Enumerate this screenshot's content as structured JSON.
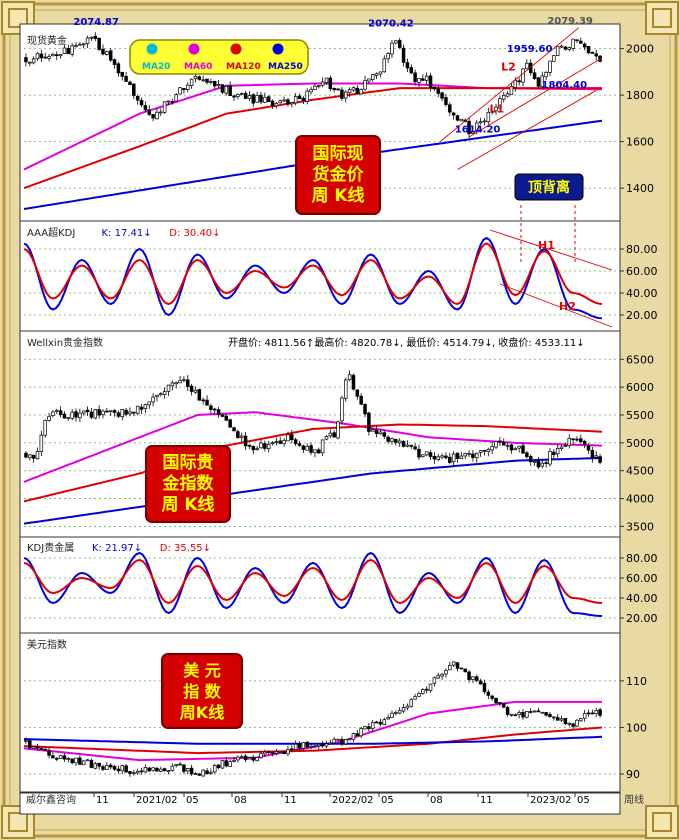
{
  "colors": {
    "ma20": "#00b8d8",
    "ma60": "#e000e0",
    "ma120": "#e00000",
    "ma250": "#0000d8",
    "k_line": "#0000e0",
    "d_line": "#e00000",
    "annot": "#e00000",
    "candle": "#000000",
    "box_bg": "#d40000",
    "box_text": "#ffff00",
    "navy_box": "#0b1a8c"
  },
  "x_axis": {
    "labels": [
      "11",
      "2021/02",
      "05",
      "08",
      "11",
      "2022/02",
      "05",
      "08",
      "11",
      "2023/02",
      "05"
    ],
    "corner_left": "威尔鑫咨询",
    "corner_right": "周线"
  },
  "chart_data": [
    {
      "id": "spot_gold",
      "type": "candlestick",
      "title": "现货黄金",
      "frequency": "weekly",
      "ylim": [
        1280,
        2080
      ],
      "yticks": [
        1400,
        1600,
        1800,
        2000
      ],
      "grid": true,
      "legend": {
        "placement": "top-left",
        "entries": [
          "MA20",
          "MA60",
          "MA120",
          "MA250"
        ]
      },
      "key_points": [
        {
          "t": 0.05,
          "y": 1960
        },
        {
          "t": 0.12,
          "y": 2050
        },
        {
          "t": 0.22,
          "y": 1700
        },
        {
          "t": 0.3,
          "y": 1880
        },
        {
          "t": 0.38,
          "y": 1790
        },
        {
          "t": 0.45,
          "y": 1760
        },
        {
          "t": 0.5,
          "y": 1810
        },
        {
          "t": 0.52,
          "y": 1870
        },
        {
          "t": 0.55,
          "y": 1790
        },
        {
          "t": 0.6,
          "y": 1860
        },
        {
          "t": 0.63,
          "y": 1960
        },
        {
          "t": 0.64,
          "y": 2060
        },
        {
          "t": 0.67,
          "y": 1880
        },
        {
          "t": 0.7,
          "y": 1860
        },
        {
          "t": 0.73,
          "y": 1760
        },
        {
          "t": 0.77,
          "y": 1650
        },
        {
          "t": 0.79,
          "y": 1680
        },
        {
          "t": 0.81,
          "y": 1750
        },
        {
          "t": 0.84,
          "y": 1810
        },
        {
          "t": 0.87,
          "y": 1930
        },
        {
          "t": 0.89,
          "y": 1830
        },
        {
          "t": 0.92,
          "y": 1990
        },
        {
          "t": 0.95,
          "y": 2030
        },
        {
          "t": 0.98,
          "y": 1990
        },
        {
          "t": 1.0,
          "y": 1945
        }
      ],
      "ma_series": [
        {
          "name": "MA60",
          "color": "#e000e0",
          "x": [
            0.0,
            0.2,
            0.35,
            0.5,
            0.65,
            0.8,
            1.0
          ],
          "y": [
            1480,
            1720,
            1840,
            1850,
            1850,
            1830,
            1825
          ]
        },
        {
          "name": "MA120",
          "color": "#e00000",
          "x": [
            0.0,
            0.2,
            0.35,
            0.5,
            0.65,
            0.8,
            1.0
          ],
          "y": [
            1400,
            1580,
            1720,
            1780,
            1830,
            1830,
            1830
          ]
        },
        {
          "name": "MA250",
          "color": "#0000d8",
          "x": [
            0.0,
            0.3,
            0.6,
            0.8,
            1.0
          ],
          "y": [
            1310,
            1430,
            1550,
            1620,
            1690
          ]
        }
      ],
      "annotations": [
        {
          "text": "2074.87",
          "x": 0.12,
          "y": 2075,
          "color": "#0000d8"
        },
        {
          "text": "2070.42",
          "x": 0.63,
          "y": 2070,
          "color": "#0000d8"
        },
        {
          "text": "2079.39",
          "x": 0.94,
          "y": 2079,
          "color": "#555555"
        },
        {
          "text": "1959.60",
          "x": 0.87,
          "y": 1960,
          "color": "#0000d8"
        },
        {
          "text": "1804.40",
          "x": 0.93,
          "y": 1804,
          "color": "#0000d8"
        },
        {
          "text": "1614.20",
          "x": 0.78,
          "y": 1614,
          "color": "#0000d8"
        },
        {
          "text": "L2",
          "x": 0.86,
          "y": 1880,
          "color": "#e00000"
        },
        {
          "text": "L1",
          "x": 0.84,
          "y": 1700,
          "color": "#e00000"
        }
      ],
      "label_box": "国际现\n货金价\n周 K线",
      "divergence_label": "顶背离"
    },
    {
      "id": "aaa_kdj",
      "type": "line",
      "title": "AAA超KDJ",
      "series": [
        {
          "name": "K: 17.41↓",
          "color": "#0000e0",
          "x": [
            0.0,
            0.05,
            0.1,
            0.15,
            0.2,
            0.25,
            0.3,
            0.35,
            0.4,
            0.45,
            0.5,
            0.55,
            0.6,
            0.65,
            0.7,
            0.75,
            0.8,
            0.85,
            0.9,
            0.95,
            1.0
          ],
          "y": [
            85,
            25,
            70,
            30,
            80,
            20,
            75,
            35,
            65,
            40,
            70,
            30,
            75,
            30,
            60,
            25,
            90,
            30,
            80,
            25,
            17
          ]
        },
        {
          "name": "D: 30.40↓",
          "color": "#e00000",
          "x": [
            0.0,
            0.05,
            0.1,
            0.15,
            0.2,
            0.25,
            0.3,
            0.35,
            0.4,
            0.45,
            0.5,
            0.55,
            0.6,
            0.65,
            0.7,
            0.75,
            0.8,
            0.85,
            0.9,
            0.95,
            1.0
          ],
          "y": [
            80,
            35,
            65,
            35,
            70,
            30,
            70,
            40,
            60,
            45,
            65,
            38,
            70,
            35,
            55,
            30,
            85,
            38,
            78,
            40,
            30
          ]
        }
      ],
      "ylim": [
        10,
        100
      ],
      "yticks": [
        20,
        40,
        60,
        80
      ],
      "annotations": [
        "H1",
        "H2"
      ]
    },
    {
      "id": "wellxin_index",
      "type": "candlestick",
      "title": "Wellxin贵金指数",
      "ohlc_summary": {
        "open": "4811.56↑",
        "high": "4820.78↓",
        "low": "4514.79↓",
        "close": "4533.11↓"
      },
      "ylim": [
        3400,
        6900
      ],
      "yticks": [
        3500,
        4000,
        4500,
        5000,
        5500,
        6000,
        6500
      ],
      "key_points": [
        {
          "t": 0.02,
          "y": 4800
        },
        {
          "t": 0.04,
          "y": 5500
        },
        {
          "t": 0.1,
          "y": 5500
        },
        {
          "t": 0.2,
          "y": 5600
        },
        {
          "t": 0.27,
          "y": 6100
        },
        {
          "t": 0.31,
          "y": 5800
        },
        {
          "t": 0.36,
          "y": 5200
        },
        {
          "t": 0.4,
          "y": 4900
        },
        {
          "t": 0.45,
          "y": 5100
        },
        {
          "t": 0.5,
          "y": 4800
        },
        {
          "t": 0.54,
          "y": 5200
        },
        {
          "t": 0.56,
          "y": 6300
        },
        {
          "t": 0.58,
          "y": 5700
        },
        {
          "t": 0.6,
          "y": 5200
        },
        {
          "t": 0.66,
          "y": 4900
        },
        {
          "t": 0.72,
          "y": 4700
        },
        {
          "t": 0.78,
          "y": 4800
        },
        {
          "t": 0.82,
          "y": 5000
        },
        {
          "t": 0.86,
          "y": 4900
        },
        {
          "t": 0.89,
          "y": 4500
        },
        {
          "t": 0.92,
          "y": 4900
        },
        {
          "t": 0.95,
          "y": 5100
        },
        {
          "t": 1.0,
          "y": 4600
        }
      ],
      "ma_series": [
        {
          "name": "MA60",
          "color": "#e000e0",
          "x": [
            0.0,
            0.2,
            0.3,
            0.4,
            0.55,
            0.7,
            0.85,
            1.0
          ],
          "y": [
            4300,
            5100,
            5500,
            5550,
            5350,
            5100,
            5000,
            4950
          ]
        },
        {
          "name": "MA120",
          "color": "#e00000",
          "x": [
            0.0,
            0.2,
            0.35,
            0.5,
            0.65,
            0.8,
            1.0
          ],
          "y": [
            3950,
            4450,
            4950,
            5250,
            5330,
            5300,
            5200
          ]
        },
        {
          "name": "MA250",
          "color": "#0000d8",
          "x": [
            0.0,
            0.3,
            0.6,
            0.85,
            1.0
          ],
          "y": [
            3550,
            4000,
            4450,
            4680,
            4730
          ]
        }
      ],
      "label_box": "国际贵\n金指数\n周  K线"
    },
    {
      "id": "kdj_metal",
      "type": "line",
      "title": "KDJ贵金属",
      "series": [
        {
          "name": "K: 21.97↓",
          "color": "#0000e0",
          "x": [
            0.0,
            0.05,
            0.1,
            0.15,
            0.2,
            0.25,
            0.3,
            0.35,
            0.4,
            0.45,
            0.5,
            0.55,
            0.6,
            0.65,
            0.7,
            0.75,
            0.8,
            0.85,
            0.9,
            0.95,
            1.0
          ],
          "y": [
            80,
            35,
            65,
            45,
            85,
            25,
            80,
            30,
            70,
            35,
            75,
            30,
            85,
            25,
            65,
            35,
            80,
            25,
            78,
            25,
            22
          ]
        },
        {
          "name": "D: 35.55↓",
          "color": "#e00000",
          "x": [
            0.0,
            0.05,
            0.1,
            0.15,
            0.2,
            0.25,
            0.3,
            0.35,
            0.4,
            0.45,
            0.5,
            0.55,
            0.6,
            0.65,
            0.7,
            0.75,
            0.8,
            0.85,
            0.9,
            0.95,
            1.0
          ],
          "y": [
            75,
            45,
            60,
            50,
            78,
            35,
            72,
            38,
            65,
            42,
            70,
            38,
            78,
            35,
            60,
            40,
            75,
            35,
            72,
            40,
            35
          ]
        }
      ],
      "ylim": [
        10,
        95
      ],
      "yticks": [
        20,
        40,
        60,
        80
      ]
    },
    {
      "id": "dollar_index",
      "type": "candlestick",
      "title": "美元指数",
      "ylim": [
        87,
        119
      ],
      "yticks": [
        90,
        100,
        110
      ],
      "key_points": [
        {
          "t": 0.0,
          "y": 97
        },
        {
          "t": 0.05,
          "y": 94
        },
        {
          "t": 0.12,
          "y": 92
        },
        {
          "t": 0.2,
          "y": 90.5
        },
        {
          "t": 0.27,
          "y": 91.5
        },
        {
          "t": 0.3,
          "y": 90
        },
        {
          "t": 0.35,
          "y": 92.5
        },
        {
          "t": 0.42,
          "y": 94
        },
        {
          "t": 0.48,
          "y": 96
        },
        {
          "t": 0.55,
          "y": 97
        },
        {
          "t": 0.6,
          "y": 100
        },
        {
          "t": 0.65,
          "y": 104
        },
        {
          "t": 0.7,
          "y": 109
        },
        {
          "t": 0.74,
          "y": 114
        },
        {
          "t": 0.78,
          "y": 110
        },
        {
          "t": 0.82,
          "y": 105
        },
        {
          "t": 0.85,
          "y": 102
        },
        {
          "t": 0.88,
          "y": 104
        },
        {
          "t": 0.92,
          "y": 102
        },
        {
          "t": 0.95,
          "y": 101
        },
        {
          "t": 0.98,
          "y": 104
        },
        {
          "t": 1.0,
          "y": 102.5
        }
      ],
      "ma_series": [
        {
          "name": "MA60",
          "color": "#e000e0",
          "x": [
            0.0,
            0.2,
            0.4,
            0.55,
            0.7,
            0.85,
            1.0
          ],
          "y": [
            95.5,
            93,
            93.5,
            97,
            103,
            105.5,
            105.5
          ]
        },
        {
          "name": "MA120",
          "color": "#e00000",
          "x": [
            0.0,
            0.3,
            0.5,
            0.7,
            0.85,
            1.0
          ],
          "y": [
            96,
            94.5,
            95,
            96.5,
            98.5,
            100
          ]
        },
        {
          "name": "MA250",
          "color": "#0000d8",
          "x": [
            0.0,
            0.3,
            0.6,
            0.8,
            1.0
          ],
          "y": [
            97.5,
            96.5,
            96.5,
            97,
            98
          ]
        }
      ],
      "label_box": "美   元\n指   数\n周K线"
    }
  ]
}
